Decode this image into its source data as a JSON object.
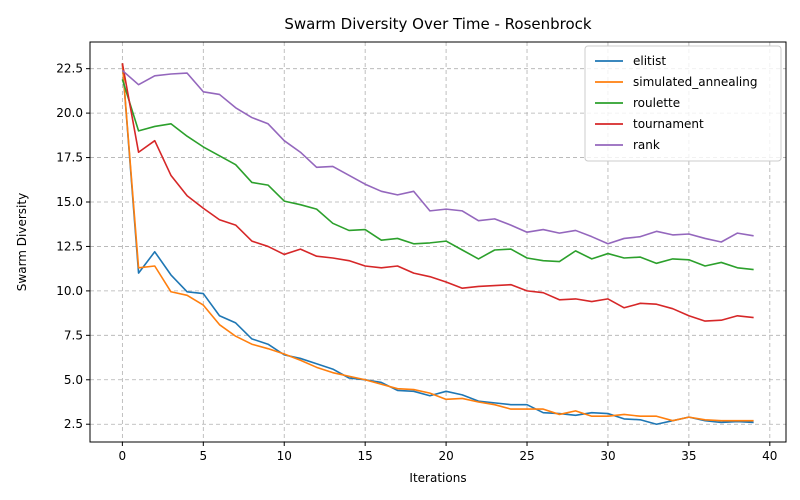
{
  "chart_data": {
    "type": "line",
    "title": "Swarm Diversity Over Time - Rosenbrock",
    "xlabel": "Iterations",
    "ylabel": "Swarm Diversity",
    "xlim": [
      -2,
      41
    ],
    "ylim": [
      1.5,
      24.0
    ],
    "xticks": [
      0,
      5,
      10,
      15,
      20,
      25,
      30,
      35,
      40
    ],
    "xtick_labels": [
      "0",
      "5",
      "10",
      "15",
      "20",
      "25",
      "30",
      "35",
      "40"
    ],
    "yticks": [
      2.5,
      5.0,
      7.5,
      10.0,
      12.5,
      15.0,
      17.5,
      20.0,
      22.5
    ],
    "ytick_labels": [
      "2.5",
      "5.0",
      "7.5",
      "10.0",
      "12.5",
      "15.0",
      "17.5",
      "20.0",
      "22.5"
    ],
    "grid": true,
    "legend_position": "top-right",
    "x": [
      0,
      1,
      2,
      3,
      4,
      5,
      6,
      7,
      8,
      9,
      10,
      11,
      12,
      13,
      14,
      15,
      16,
      17,
      18,
      19,
      20,
      21,
      22,
      23,
      24,
      25,
      26,
      27,
      28,
      29,
      30,
      31,
      32,
      33,
      34,
      35,
      36,
      37,
      38,
      39
    ],
    "series": [
      {
        "name": "elitist",
        "color": "#1f77b4",
        "values": [
          22.8,
          11.0,
          12.2,
          10.9,
          9.95,
          9.85,
          8.6,
          8.2,
          7.3,
          7.0,
          6.4,
          6.2,
          5.9,
          5.6,
          5.1,
          5.0,
          4.85,
          4.4,
          4.35,
          4.1,
          4.35,
          4.15,
          3.8,
          3.7,
          3.6,
          3.6,
          3.15,
          3.1,
          3.0,
          3.15,
          3.1,
          2.8,
          2.75,
          2.5,
          2.7,
          2.9,
          2.7,
          2.6,
          2.65,
          2.6
        ]
      },
      {
        "name": "simulated_annealing",
        "color": "#ff7f0e",
        "values": [
          22.8,
          11.3,
          11.4,
          9.95,
          9.75,
          9.2,
          8.1,
          7.45,
          7.0,
          6.75,
          6.45,
          6.1,
          5.7,
          5.4,
          5.2,
          5.0,
          4.75,
          4.5,
          4.45,
          4.25,
          3.9,
          3.95,
          3.75,
          3.6,
          3.35,
          3.35,
          3.35,
          3.05,
          3.25,
          2.95,
          2.95,
          3.05,
          2.95,
          2.95,
          2.7,
          2.9,
          2.75,
          2.7,
          2.7,
          2.7
        ]
      },
      {
        "name": "roulette",
        "color": "#2ca02c",
        "values": [
          21.9,
          19.0,
          19.25,
          19.4,
          18.7,
          18.1,
          17.6,
          17.1,
          16.1,
          15.95,
          15.05,
          14.85,
          14.6,
          13.8,
          13.4,
          13.45,
          12.85,
          12.95,
          12.65,
          12.7,
          12.8,
          12.3,
          11.8,
          12.3,
          12.35,
          11.85,
          11.7,
          11.65,
          12.25,
          11.8,
          12.1,
          11.85,
          11.9,
          11.55,
          11.8,
          11.75,
          11.4,
          11.6,
          11.3,
          11.2
        ]
      },
      {
        "name": "tournament",
        "color": "#d62728",
        "values": [
          22.8,
          17.8,
          18.45,
          16.5,
          15.35,
          14.65,
          14.0,
          13.7,
          12.8,
          12.5,
          12.05,
          12.35,
          11.95,
          11.85,
          11.7,
          11.4,
          11.3,
          11.4,
          11.0,
          10.8,
          10.5,
          10.15,
          10.25,
          10.3,
          10.35,
          10.0,
          9.9,
          9.5,
          9.55,
          9.4,
          9.55,
          9.05,
          9.3,
          9.25,
          9.0,
          8.6,
          8.3,
          8.35,
          8.6,
          8.5
        ]
      },
      {
        "name": "rank",
        "color": "#9467bd",
        "values": [
          22.4,
          21.6,
          22.1,
          22.2,
          22.25,
          21.2,
          21.05,
          20.3,
          19.75,
          19.4,
          18.45,
          17.8,
          16.95,
          17.0,
          16.5,
          16.0,
          15.6,
          15.4,
          15.6,
          14.5,
          14.6,
          14.5,
          13.95,
          14.05,
          13.7,
          13.3,
          13.45,
          13.25,
          13.4,
          13.05,
          12.65,
          12.95,
          13.05,
          13.35,
          13.15,
          13.2,
          12.95,
          12.75,
          13.25,
          13.1
        ]
      }
    ]
  }
}
